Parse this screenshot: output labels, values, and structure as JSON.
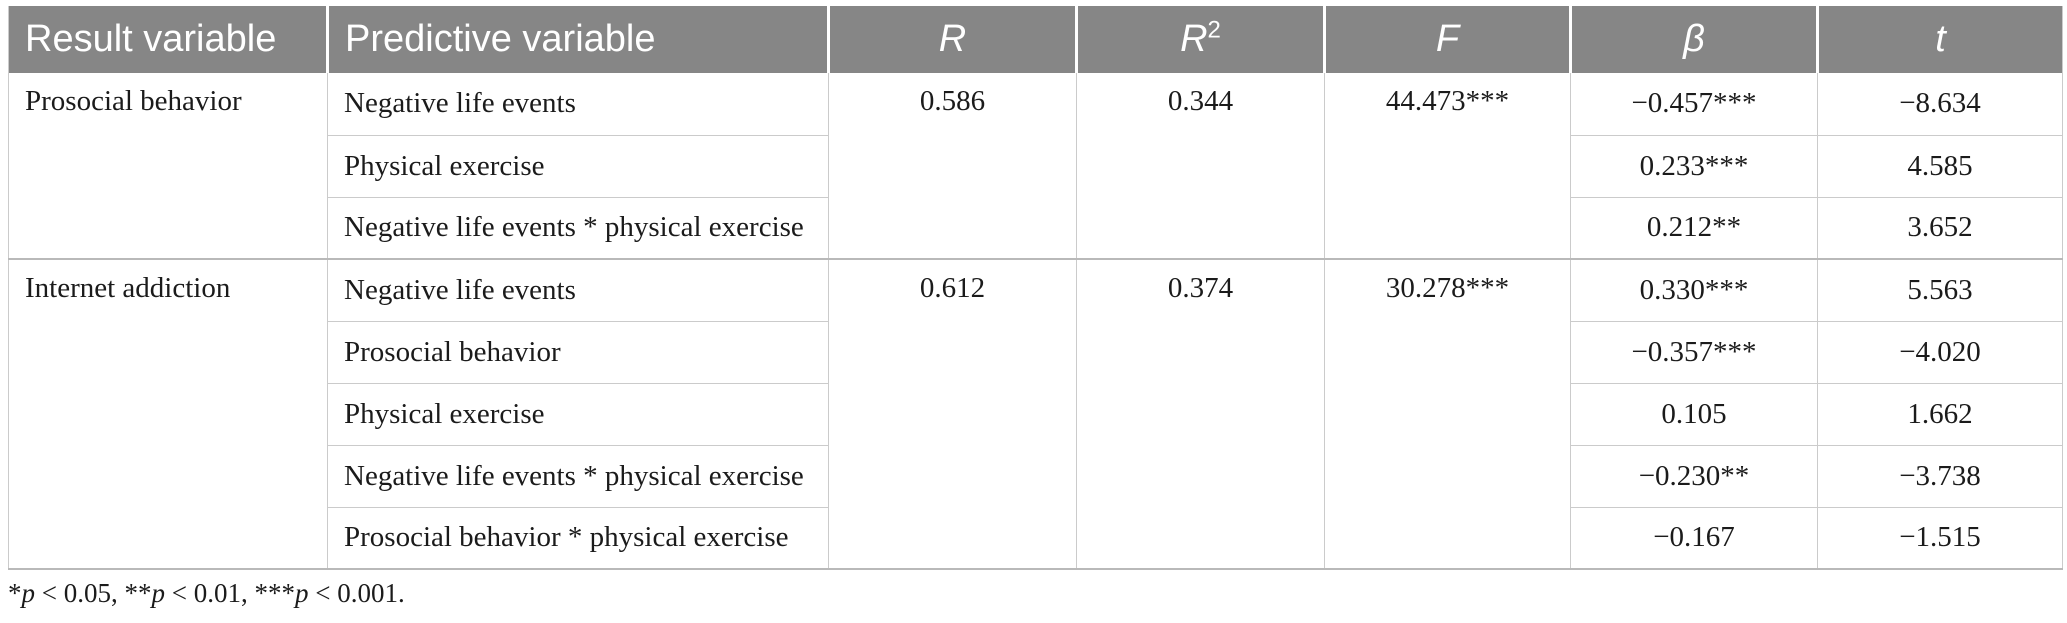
{
  "colors": {
    "header_bg": "#868686",
    "header_text": "#ffffff",
    "row_border": "#cbcbcb",
    "group_border": "#b9b9b9",
    "body_text": "#1b1b1b"
  },
  "table": {
    "header": [
      {
        "label": "Result variable",
        "align": "left",
        "italic": false
      },
      {
        "label": "Predictive variable",
        "align": "left",
        "italic": false
      },
      {
        "label": "R",
        "align": "center",
        "italic": true
      },
      {
        "label": "R",
        "sup": "2",
        "align": "center",
        "italic": true
      },
      {
        "label": "F",
        "align": "center",
        "italic": true
      },
      {
        "label": "β",
        "align": "center",
        "italic": true
      },
      {
        "label": "t",
        "align": "center",
        "italic": true
      }
    ],
    "groups": [
      {
        "result_variable": "Prosocial behavior",
        "R": "0.586",
        "R2": "0.344",
        "F": "44.473***",
        "rows": [
          {
            "predictive": "Negative life events",
            "beta": "−0.457***",
            "t": "−8.634"
          },
          {
            "predictive": "Physical exercise",
            "beta": "0.233***",
            "t": "4.585"
          },
          {
            "predictive": "Negative life events * physical exercise",
            "beta": "0.212**",
            "t": "3.652"
          }
        ]
      },
      {
        "result_variable": "Internet addiction",
        "R": "0.612",
        "R2": "0.374",
        "F": "30.278***",
        "rows": [
          {
            "predictive": "Negative life events",
            "beta": "0.330***",
            "t": "5.563"
          },
          {
            "predictive": "Prosocial behavior",
            "beta": "−0.357***",
            "t": "−4.020"
          },
          {
            "predictive": "Physical exercise",
            "beta": "0.105",
            "t": "1.662"
          },
          {
            "predictive": "Negative life events * physical exercise",
            "beta": "−0.230**",
            "t": "−3.738"
          },
          {
            "predictive": "Prosocial behavior * physical exercise",
            "beta": "−0.167",
            "t": "−1.515"
          }
        ]
      }
    ],
    "footnote": [
      {
        "text": "*"
      },
      {
        "text": "p",
        "italic": true
      },
      {
        "text": " < 0.05, "
      },
      {
        "text": "**"
      },
      {
        "text": "p",
        "italic": true
      },
      {
        "text": " < 0.01, "
      },
      {
        "text": "***"
      },
      {
        "text": "p",
        "italic": true
      },
      {
        "text": " < 0.001."
      }
    ]
  }
}
